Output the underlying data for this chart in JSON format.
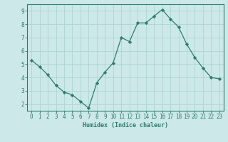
{
  "x": [
    0,
    1,
    2,
    3,
    4,
    5,
    6,
    7,
    8,
    9,
    10,
    11,
    12,
    13,
    14,
    15,
    16,
    17,
    18,
    19,
    20,
    21,
    22,
    23
  ],
  "y": [
    5.3,
    4.8,
    4.2,
    3.4,
    2.9,
    2.7,
    2.2,
    1.7,
    3.6,
    4.4,
    5.1,
    7.0,
    6.7,
    8.1,
    8.1,
    8.6,
    9.1,
    8.4,
    7.8,
    6.5,
    5.5,
    4.7,
    4.0,
    3.9
  ],
  "line_color": "#2e7d6e",
  "marker": "D",
  "marker_size": 2.2,
  "bg_color": "#cce8e8",
  "grid_color": "#aed4d4",
  "xlabel": "Humidex (Indice chaleur)",
  "xlim": [
    -0.5,
    23.5
  ],
  "ylim": [
    1.5,
    9.5
  ],
  "xticks": [
    0,
    1,
    2,
    3,
    4,
    5,
    6,
    7,
    8,
    9,
    10,
    11,
    12,
    13,
    14,
    15,
    16,
    17,
    18,
    19,
    20,
    21,
    22,
    23
  ],
  "yticks": [
    2,
    3,
    4,
    5,
    6,
    7,
    8,
    9
  ],
  "tick_color": "#2e7d6e",
  "label_color": "#2e7d6e",
  "spine_color": "#2e7d6e",
  "tick_fontsize": 5.5,
  "xlabel_fontsize": 6.0,
  "linewidth": 0.9
}
